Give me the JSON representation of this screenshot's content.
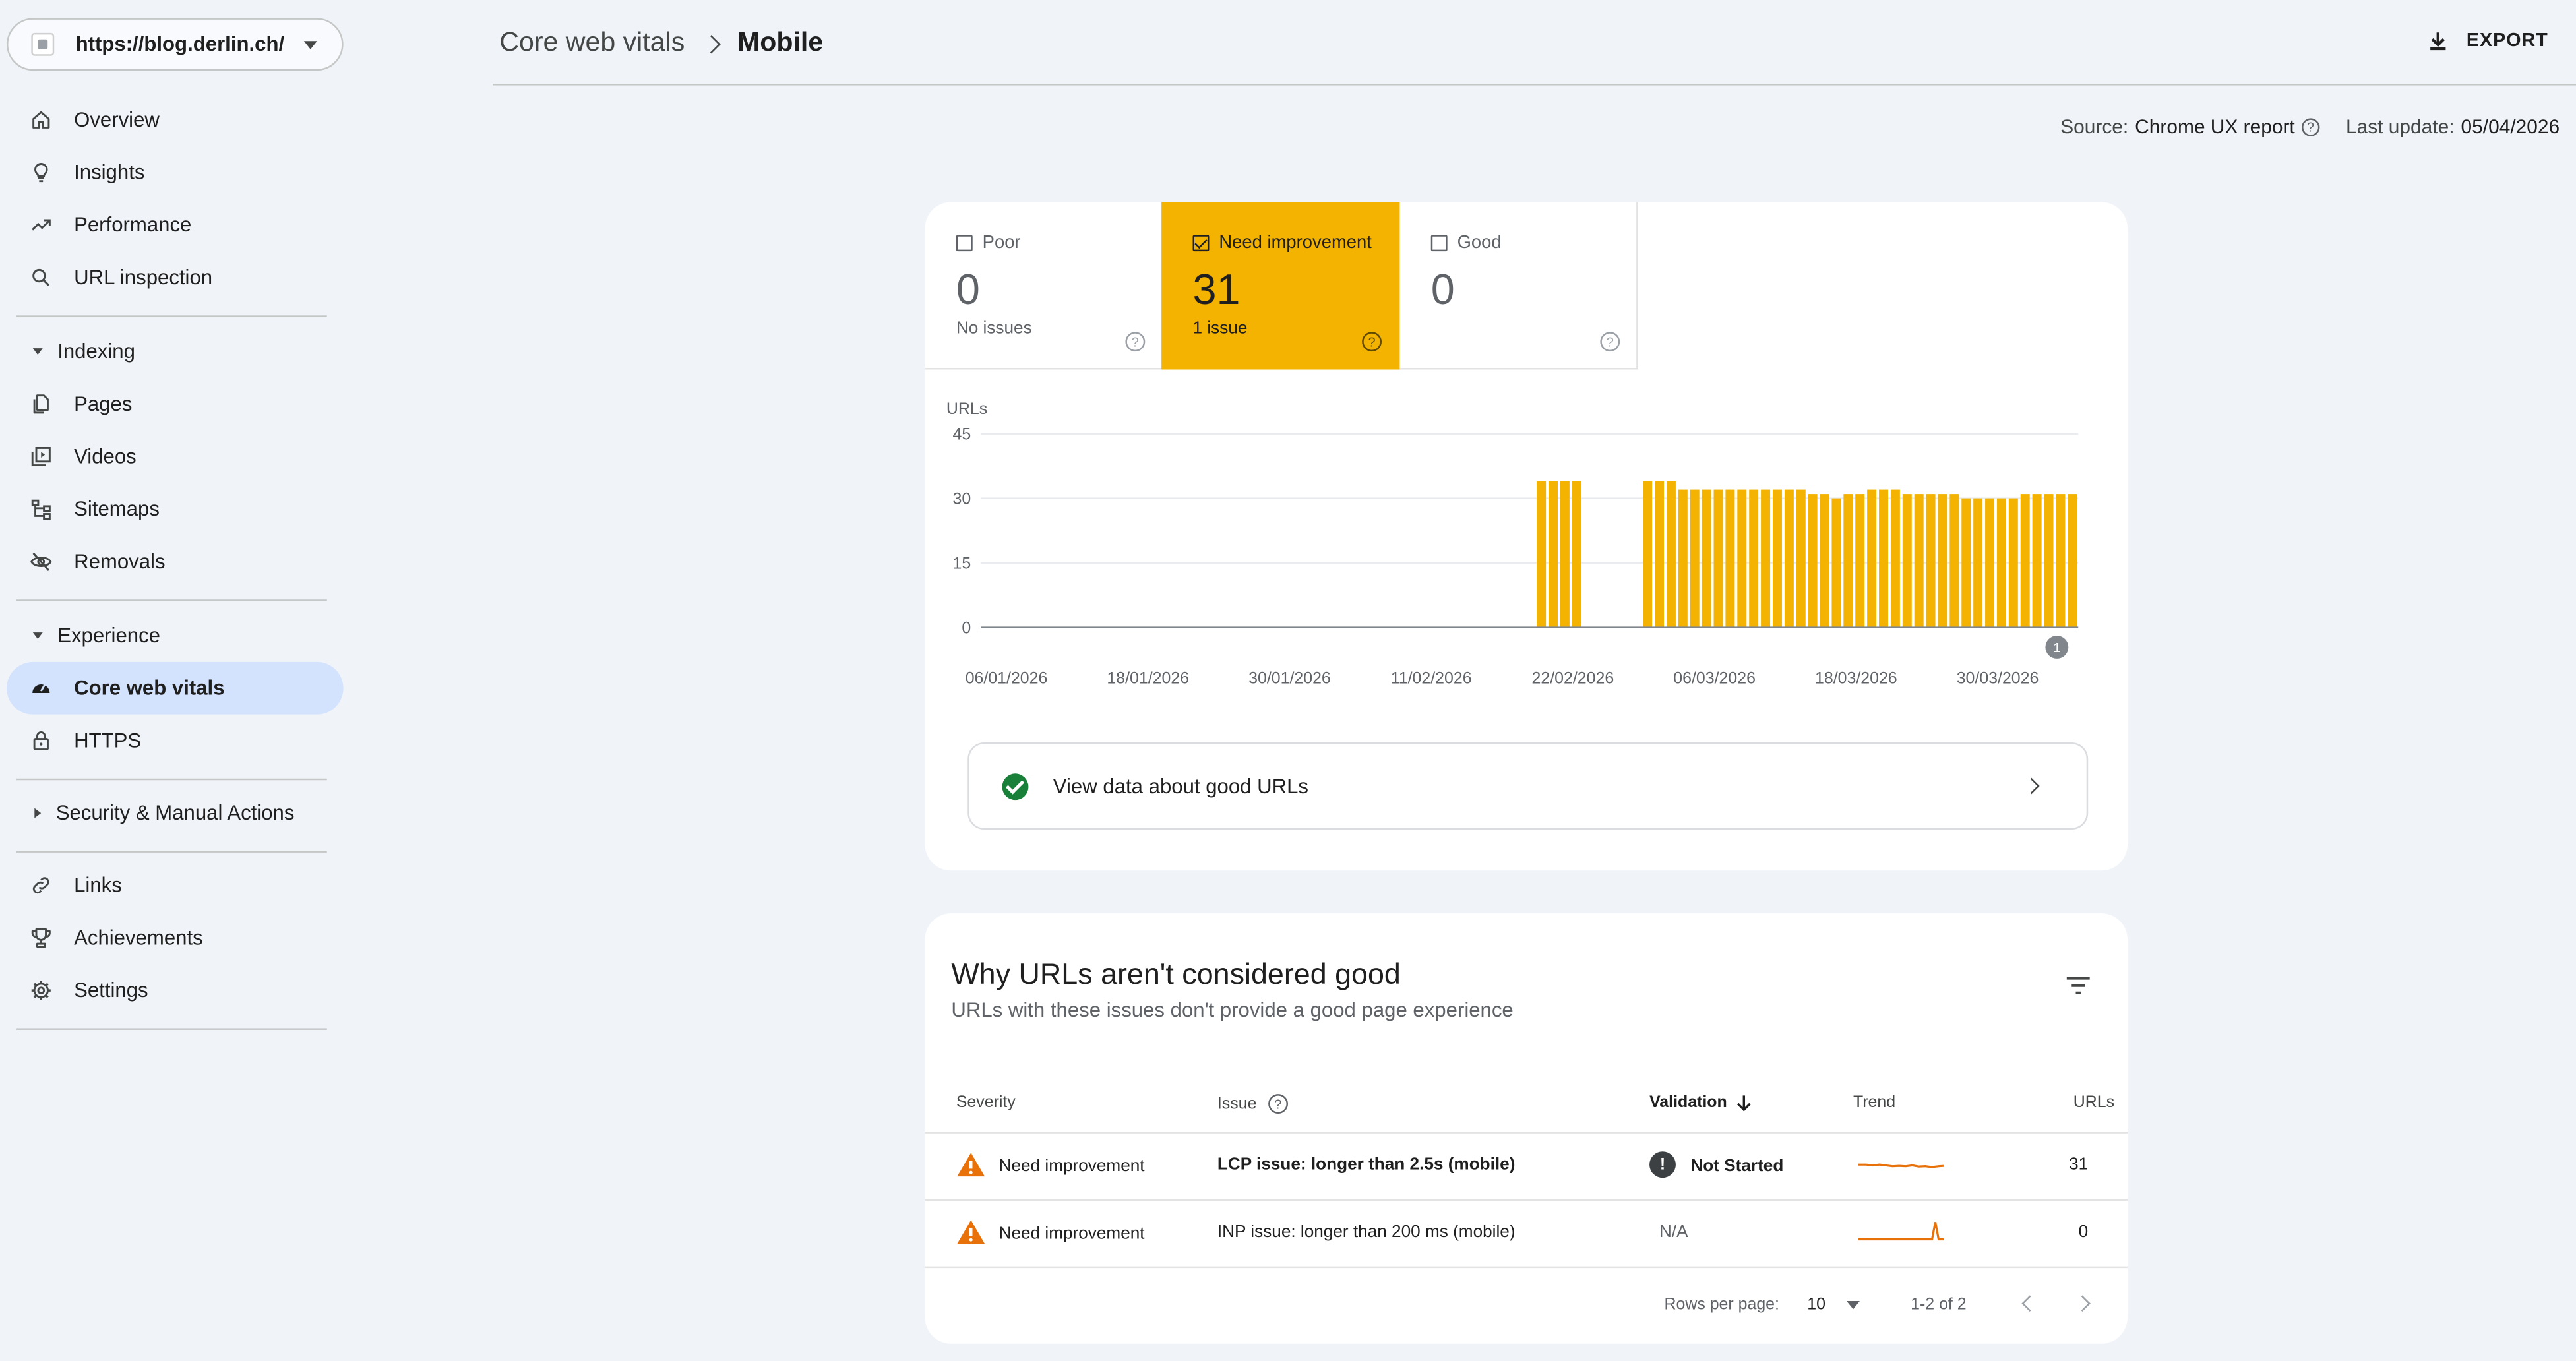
{
  "property": {
    "url": "https://blog.derlin.ch/"
  },
  "nav": {
    "top": [
      {
        "label": "Overview",
        "icon": "home-icon"
      },
      {
        "label": "Insights",
        "icon": "lightbulb-icon"
      },
      {
        "label": "Performance",
        "icon": "trending-up-icon"
      },
      {
        "label": "URL inspection",
        "icon": "search-icon"
      }
    ],
    "indexing": {
      "label": "Indexing",
      "items": [
        {
          "label": "Pages",
          "icon": "pages-icon"
        },
        {
          "label": "Videos",
          "icon": "video-icon"
        },
        {
          "label": "Sitemaps",
          "icon": "sitemap-icon"
        },
        {
          "label": "Removals",
          "icon": "eye-off-icon"
        }
      ]
    },
    "experience": {
      "label": "Experience",
      "items": [
        {
          "label": "Core web vitals",
          "icon": "speedometer-icon"
        },
        {
          "label": "HTTPS",
          "icon": "lock-icon"
        }
      ]
    },
    "security": {
      "label": "Security & Manual Actions"
    },
    "bottom": [
      {
        "label": "Links",
        "icon": "link-icon"
      },
      {
        "label": "Achievements",
        "icon": "trophy-icon"
      },
      {
        "label": "Settings",
        "icon": "gear-icon"
      }
    ]
  },
  "header": {
    "breadcrumb_root": "Core web vitals",
    "breadcrumb_leaf": "Mobile",
    "export_label": "EXPORT"
  },
  "meta": {
    "source_label": "Source:",
    "source_value": "Chrome UX report",
    "last_update_label": "Last update:",
    "last_update_value": "05/04/2026"
  },
  "tiles": [
    {
      "label": "Poor",
      "count": "0",
      "sub": "No issues",
      "checked": false
    },
    {
      "label": "Need improvement",
      "count": "31",
      "sub": "1 issue",
      "checked": true
    },
    {
      "label": "Good",
      "count": "0",
      "sub": "",
      "checked": false
    }
  ],
  "colors": {
    "need_improvement": "#f3b300",
    "good": "#188038",
    "accent_nav": "#d3e3fd"
  },
  "chart_data": {
    "type": "bar",
    "ylabel": "URLs",
    "ylim": [
      0,
      45
    ],
    "yticks": [
      0,
      15,
      30,
      45
    ],
    "x_tick_labels": [
      "06/01/2026",
      "18/01/2026",
      "30/01/2026",
      "11/02/2026",
      "22/02/2026",
      "06/03/2026",
      "18/03/2026",
      "30/03/2026"
    ],
    "x_start": "2026-01-06",
    "series": [
      {
        "values": [
          0,
          0,
          0,
          0,
          0,
          0,
          0,
          0,
          0,
          0,
          0,
          0,
          0,
          0,
          0,
          0,
          0,
          0,
          0,
          0,
          0,
          0,
          0,
          0,
          0,
          0,
          0,
          0,
          0,
          0,
          0,
          0,
          0,
          0,
          0,
          0,
          0,
          0,
          0,
          0,
          0,
          0,
          0,
          0,
          0,
          0,
          0,
          34,
          34,
          34,
          34,
          0,
          0,
          0,
          0,
          0,
          34,
          34,
          34,
          32,
          32,
          32,
          32,
          32,
          32,
          32,
          32,
          32,
          32,
          32,
          31,
          31,
          30,
          31,
          31,
          32,
          32,
          32,
          31,
          31,
          31,
          31,
          31,
          30,
          30,
          30,
          30,
          30,
          31,
          31,
          31,
          31,
          31
        ]
      }
    ],
    "annotation": "1"
  },
  "good_link": {
    "label": "View data about good URLs"
  },
  "issues": {
    "title": "Why URLs aren't considered good",
    "subtitle": "URLs with these issues don't provide a good page experience",
    "columns": {
      "severity": "Severity",
      "issue": "Issue",
      "validation": "Validation",
      "trend": "Trend",
      "urls": "URLs"
    },
    "rows": [
      {
        "severity": "Need improvement",
        "issue": "LCP issue: longer than 2.5s (mobile)",
        "validation": "Not Started",
        "urls": "31"
      },
      {
        "severity": "Need improvement",
        "issue": "INP issue: longer than 200 ms (mobile)",
        "validation": "N/A",
        "urls": "0"
      }
    ],
    "pager": {
      "rows_per_page_label": "Rows per page:",
      "rows_per_page": "10",
      "range": "1-2 of 2"
    }
  }
}
